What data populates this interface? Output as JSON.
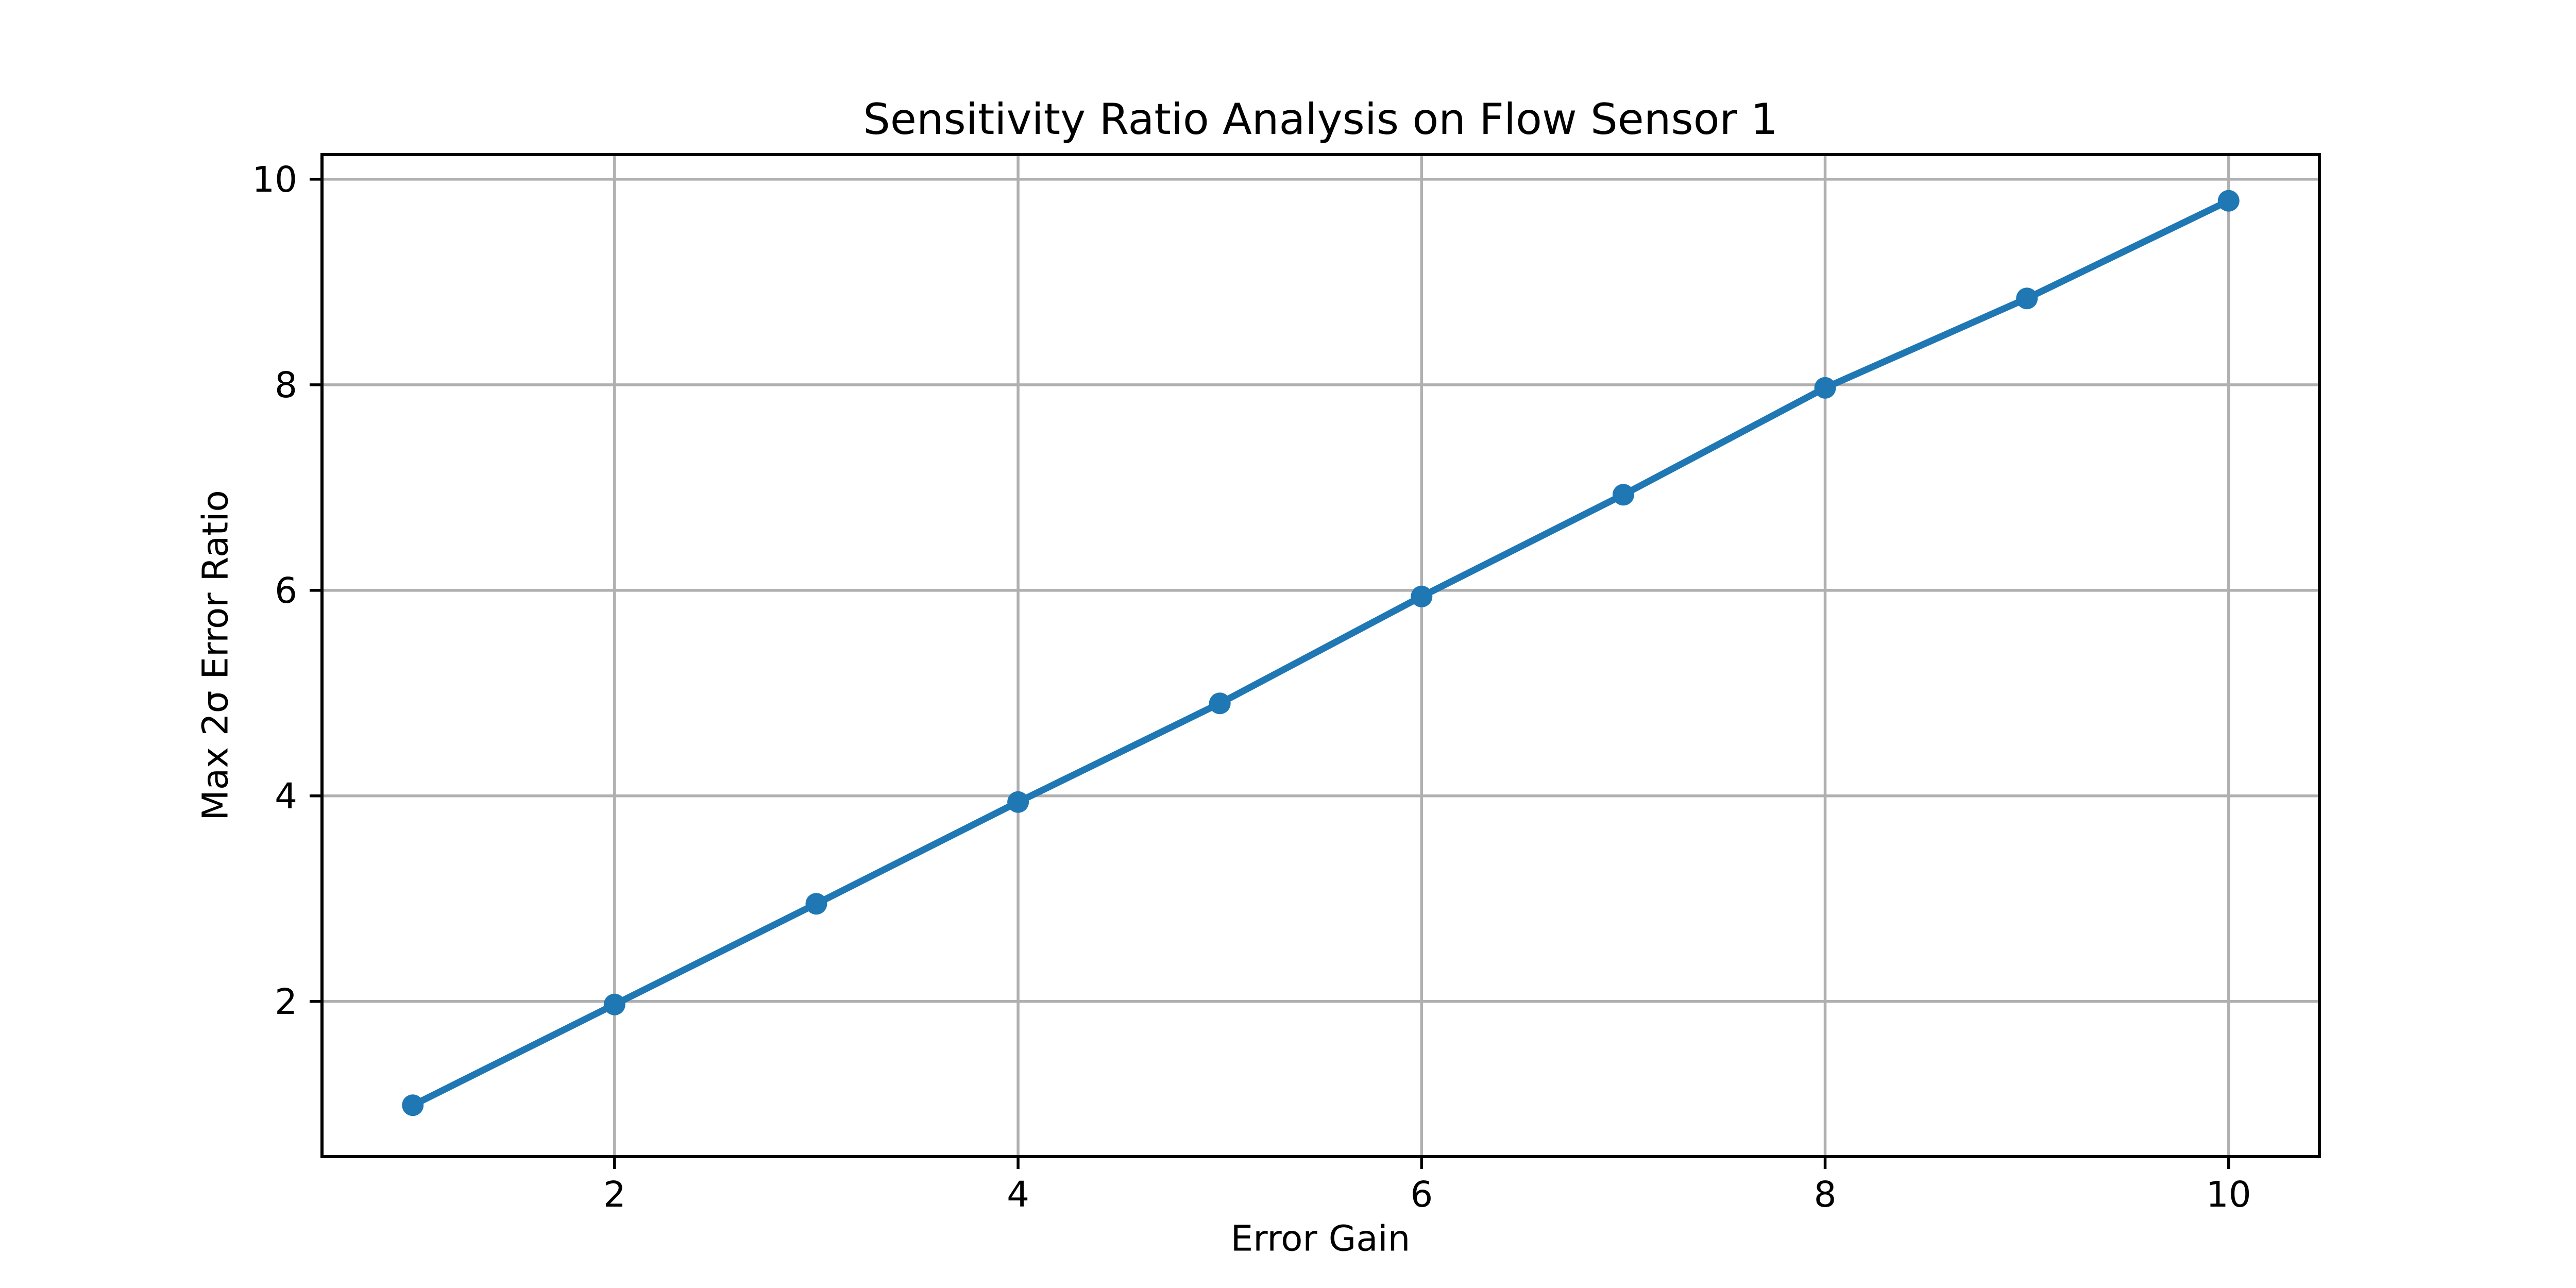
{
  "chart_data": {
    "type": "line",
    "title": "Sensitivity Ratio Analysis on Flow Sensor 1",
    "xlabel": "Error Gain",
    "ylabel": "Max 2σ Error Ratio",
    "x": [
      1,
      2,
      3,
      4,
      5,
      6,
      7,
      8,
      9,
      10
    ],
    "y": [
      0.99,
      1.97,
      2.95,
      3.94,
      4.9,
      5.94,
      6.93,
      7.97,
      8.84,
      9.79
    ],
    "xticks": [
      2,
      4,
      6,
      8,
      10
    ],
    "yticks": [
      2,
      4,
      6,
      8,
      10
    ],
    "xlim": [
      0.55,
      10.45
    ],
    "ylim": [
      0.49,
      10.24
    ],
    "grid": true,
    "legend": false,
    "marker": "circle",
    "line_color": "#1f77b4",
    "marker_color": "#1f77b4",
    "grid_color": "#b0b0b0",
    "spine_color": "#000000",
    "text_color": "#000000",
    "background_color": "#ffffff"
  }
}
